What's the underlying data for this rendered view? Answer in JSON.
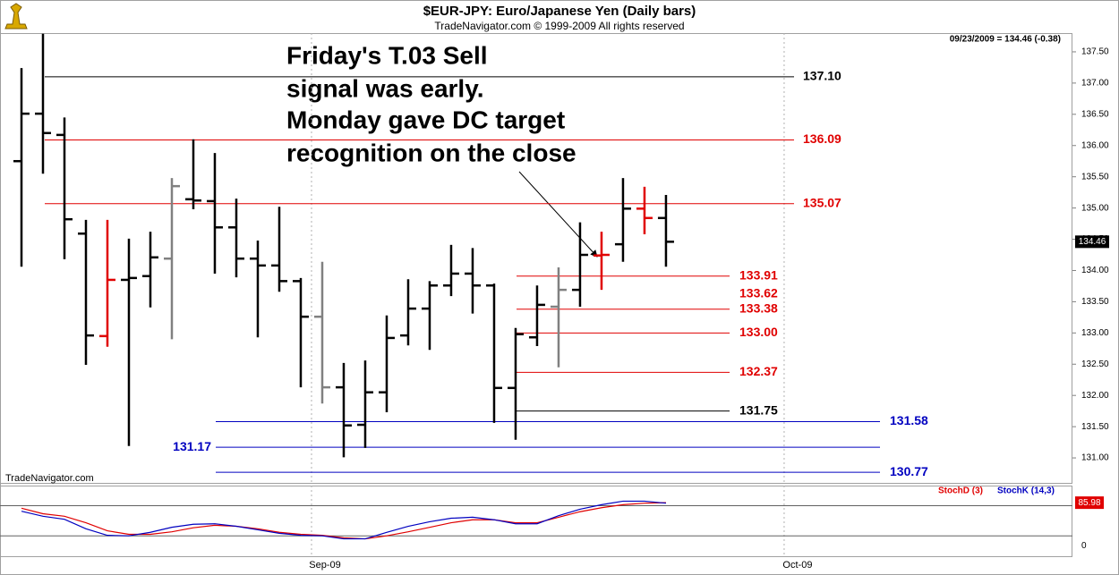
{
  "chart_data": [
    {
      "type": "ohlc",
      "title": "$EUR-JPY:  Euro/Japanese Yen  (Daily bars)",
      "subtitle": "TradeNavigator.com © 1999-2009 All rights reserved",
      "info": "09/23/2009 = 134.46 (-0.38)",
      "source": "TradeNavigator.com",
      "annotation": [
        "Friday's T.03 Sell",
        "signal was early.",
        "Monday gave DC target",
        "recognition on the close"
      ],
      "open": [
        135.75,
        136.51,
        136.17,
        134.59,
        132.95,
        133.85,
        133.91,
        134.19,
        135.14,
        135.11,
        134.69,
        134.19,
        134.08,
        133.83,
        133.26,
        132.13,
        131.53,
        132.05,
        132.96,
        133.39,
        133.76,
        133.95,
        133.76,
        132.12,
        132.93,
        133.42,
        133.69,
        134.24,
        134.42,
        134.99,
        134.84
      ],
      "high": [
        137.24,
        137.79,
        136.45,
        134.81,
        134.81,
        134.51,
        134.62,
        135.48,
        136.1,
        135.88,
        135.15,
        134.48,
        135.02,
        133.88,
        134.14,
        132.52,
        132.56,
        133.28,
        133.86,
        133.83,
        134.41,
        134.36,
        133.79,
        133.08,
        133.76,
        134.05,
        134.77,
        134.62,
        135.48,
        135.34,
        135.21
      ],
      "low": [
        134.06,
        135.55,
        134.18,
        132.49,
        132.78,
        131.19,
        133.41,
        132.9,
        134.98,
        133.95,
        133.89,
        132.93,
        133.66,
        132.13,
        131.87,
        131.01,
        131.16,
        131.73,
        132.8,
        132.73,
        133.59,
        133.31,
        131.56,
        131.29,
        132.79,
        132.45,
        133.42,
        133.69,
        134.14,
        134.58,
        134.06
      ],
      "close": [
        136.51,
        136.2,
        134.82,
        132.96,
        133.85,
        133.88,
        134.21,
        135.35,
        135.12,
        134.69,
        134.19,
        134.08,
        133.83,
        133.26,
        132.13,
        131.52,
        132.05,
        132.92,
        133.39,
        133.76,
        133.95,
        133.76,
        132.12,
        132.98,
        133.45,
        133.69,
        134.25,
        134.25,
        134.99,
        134.84,
        134.46
      ],
      "bar_colors": [
        "#000000",
        "#000000",
        "#000000",
        "#000000",
        "#e00000",
        "#000000",
        "#000000",
        "#808080",
        "#000000",
        "#000000",
        "#000000",
        "#000000",
        "#000000",
        "#000000",
        "#808080",
        "#000000",
        "#000000",
        "#000000",
        "#000000",
        "#000000",
        "#000000",
        "#000000",
        "#000000",
        "#000000",
        "#000000",
        "#808080",
        "#000000",
        "#e00000",
        "#000000",
        "#e00000",
        "#000000"
      ],
      "last_value": 134.46,
      "levels": [
        {
          "value": 137.1,
          "label": "137.10",
          "color": "#000000"
        },
        {
          "value": 136.09,
          "color": "#e00000"
        },
        {
          "value": 135.07,
          "color": "#e00000"
        },
        {
          "value": 133.91,
          "color": "#e00000"
        },
        {
          "value": 133.62,
          "color": "#e00000",
          "line": false
        },
        {
          "value": 133.38,
          "color": "#e00000"
        },
        {
          "value": 133,
          "label": "133.00",
          "color": "#e00000"
        },
        {
          "value": 132.37,
          "color": "#e00000"
        },
        {
          "value": 131.75,
          "color": "#000000"
        },
        {
          "value": 131.58,
          "color": "#0000c0"
        },
        {
          "value": 131.17,
          "color": "#0000c0"
        },
        {
          "value": 130.77,
          "color": "#0000c0"
        }
      ],
      "xlim": [
        -1,
        48.92
      ],
      "xticks": [
        {
          "value": 13.5,
          "label": "Sep-09"
        },
        {
          "value": 35.5,
          "label": "Oct-09"
        }
      ],
      "ylim": [
        130.6,
        137.8
      ],
      "yticks": [
        {
          "value": 131,
          "label": "131.00"
        },
        {
          "value": 131.5,
          "label": "131.50"
        },
        {
          "value": 132,
          "label": "132.00"
        },
        {
          "value": 132.5,
          "label": "132.50"
        },
        {
          "value": 133,
          "label": "133.00"
        },
        {
          "value": 133.5,
          "label": "133.50"
        },
        {
          "value": 134,
          "label": "134.00"
        },
        {
          "value": 134.5,
          "label": "134.50"
        },
        {
          "value": 135,
          "label": "135.00"
        },
        {
          "value": 135.5,
          "label": "135.50"
        },
        {
          "value": 136,
          "label": "136.00"
        },
        {
          "value": 136.5,
          "label": "136.50"
        },
        {
          "value": 137,
          "label": "137.00"
        },
        {
          "value": 137.5,
          "label": "137.50"
        }
      ]
    },
    {
      "type": "line",
      "series": [
        {
          "name": "StochD (3)",
          "color": "#e00000",
          "values": [
            75,
            64,
            59,
            46,
            30,
            23,
            23,
            28,
            36,
            41,
            39,
            34,
            27,
            23,
            21,
            16,
            14,
            20,
            28,
            37,
            46,
            52,
            52,
            46,
            46,
            57,
            68,
            76,
            82,
            85,
            85.98
          ]
        },
        {
          "name": "StochK (14,3)",
          "color": "#0000c0",
          "values": [
            69,
            59,
            53,
            34,
            21,
            20,
            27,
            37,
            43,
            44,
            39,
            32,
            25,
            21,
            20,
            14,
            14,
            27,
            39,
            48,
            55,
            57,
            52,
            44,
            44,
            60,
            73,
            82,
            89,
            89,
            85
          ]
        }
      ],
      "last_value": 85.98,
      "levels": [
        20,
        80
      ],
      "xlim": [
        -1,
        48.92
      ],
      "ylim": [
        -17,
        120
      ],
      "yticks": [
        0
      ]
    }
  ]
}
